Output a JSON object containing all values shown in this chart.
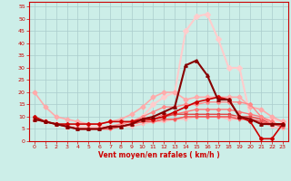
{
  "xlabel": "Vent moyen/en rafales ( km/h )",
  "background_color": "#cceee8",
  "grid_color": "#aacccc",
  "xlim": [
    -0.5,
    23.5
  ],
  "ylim": [
    0,
    57
  ],
  "yticks": [
    0,
    5,
    10,
    15,
    20,
    25,
    30,
    35,
    40,
    45,
    50,
    55
  ],
  "xticks": [
    0,
    1,
    2,
    3,
    4,
    5,
    6,
    7,
    8,
    9,
    10,
    11,
    12,
    13,
    14,
    15,
    16,
    17,
    18,
    19,
    20,
    21,
    22,
    23
  ],
  "lines": [
    {
      "x": [
        0,
        1,
        2,
        3,
        4,
        5,
        6,
        7,
        8,
        9,
        10,
        11,
        12,
        13,
        14,
        15,
        16,
        17,
        18,
        19,
        20,
        21,
        22,
        23
      ],
      "y": [
        10,
        8,
        7,
        7,
        7,
        7,
        7,
        8,
        8,
        8,
        9,
        9,
        10,
        12,
        14,
        16,
        17,
        18,
        17,
        10,
        8,
        1,
        1,
        7
      ],
      "color": "#cc0000",
      "lw": 1.2,
      "marker": "D",
      "ms": 2.0,
      "zorder": 5
    },
    {
      "x": [
        0,
        1,
        2,
        3,
        4,
        5,
        6,
        7,
        8,
        9,
        10,
        11,
        12,
        13,
        14,
        15,
        16,
        17,
        18,
        19,
        20,
        21,
        22,
        23
      ],
      "y": [
        9,
        8,
        7,
        6,
        5,
        5,
        5,
        6,
        6,
        7,
        9,
        10,
        12,
        14,
        31,
        33,
        27,
        17,
        17,
        10,
        9,
        7,
        7,
        7
      ],
      "color": "#880000",
      "lw": 1.5,
      "marker": "^",
      "ms": 2.5,
      "zorder": 6
    },
    {
      "x": [
        0,
        1,
        2,
        3,
        4,
        5,
        6,
        7,
        8,
        9,
        10,
        11,
        12,
        13,
        14,
        15,
        16,
        17,
        18,
        19,
        20,
        21,
        22,
        23
      ],
      "y": [
        20,
        14,
        10,
        9,
        8,
        7,
        7,
        8,
        9,
        11,
        14,
        18,
        20,
        20,
        17,
        18,
        18,
        18,
        18,
        18,
        14,
        13,
        10,
        8
      ],
      "color": "#ffaaaa",
      "lw": 1.2,
      "marker": "D",
      "ms": 2.5,
      "zorder": 3
    },
    {
      "x": [
        0,
        1,
        2,
        3,
        4,
        5,
        6,
        7,
        8,
        9,
        10,
        11,
        12,
        13,
        14,
        15,
        16,
        17,
        18,
        19,
        20,
        21,
        22,
        23
      ],
      "y": [
        9,
        8,
        7,
        6,
        5,
        5,
        5,
        6,
        6,
        7,
        9,
        9,
        11,
        11,
        12,
        13,
        13,
        13,
        13,
        12,
        11,
        10,
        8,
        6
      ],
      "color": "#ff7777",
      "lw": 1.0,
      "marker": "D",
      "ms": 2.0,
      "zorder": 4
    },
    {
      "x": [
        0,
        1,
        2,
        3,
        4,
        5,
        6,
        7,
        8,
        9,
        10,
        11,
        12,
        13,
        14,
        15,
        16,
        17,
        18,
        19,
        20,
        21,
        22,
        23
      ],
      "y": [
        9,
        8,
        7,
        6,
        5,
        5,
        5,
        6,
        6,
        7,
        8,
        9,
        10,
        11,
        11,
        11,
        11,
        11,
        11,
        10,
        10,
        9,
        7,
        6
      ],
      "color": "#dd4444",
      "lw": 1.0,
      "marker": "s",
      "ms": 2.0,
      "zorder": 4
    },
    {
      "x": [
        0,
        1,
        2,
        3,
        4,
        5,
        6,
        7,
        8,
        9,
        10,
        11,
        12,
        13,
        14,
        15,
        16,
        17,
        18,
        19,
        20,
        21,
        22,
        23
      ],
      "y": [
        9,
        8,
        7,
        6,
        5,
        5,
        5,
        5,
        6,
        7,
        8,
        8,
        9,
        9,
        10,
        10,
        10,
        10,
        10,
        10,
        9,
        8,
        7,
        6
      ],
      "color": "#ff9999",
      "lw": 1.0,
      "marker": "D",
      "ms": 2.0,
      "zorder": 4
    },
    {
      "x": [
        0,
        1,
        2,
        3,
        4,
        5,
        6,
        7,
        8,
        9,
        10,
        11,
        12,
        13,
        14,
        15,
        16,
        17,
        18,
        19,
        20,
        21,
        22,
        23
      ],
      "y": [
        9,
        8,
        7,
        6,
        5,
        5,
        5,
        5,
        6,
        7,
        8,
        8,
        9,
        9,
        10,
        10,
        10,
        10,
        10,
        9,
        9,
        8,
        7,
        6
      ],
      "color": "#ee5555",
      "lw": 1.0,
      "marker": "v",
      "ms": 2.0,
      "zorder": 4
    },
    {
      "x": [
        0,
        1,
        2,
        3,
        4,
        5,
        6,
        7,
        8,
        9,
        10,
        11,
        12,
        13,
        14,
        15,
        16,
        17,
        18,
        19,
        20,
        21,
        22,
        23
      ],
      "y": [
        9,
        8,
        7,
        6,
        5,
        5,
        5,
        5,
        6,
        6,
        7,
        8,
        8,
        9,
        9,
        10,
        10,
        10,
        9,
        9,
        9,
        8,
        6,
        5
      ],
      "color": "#ffbbbb",
      "lw": 1.0,
      "marker": "s",
      "ms": 2.0,
      "zorder": 3
    },
    {
      "x": [
        0,
        1,
        2,
        3,
        4,
        5,
        6,
        7,
        8,
        9,
        10,
        11,
        12,
        13,
        14,
        15,
        16,
        17,
        18,
        19,
        20,
        21,
        22,
        23
      ],
      "y": [
        9,
        8,
        7,
        6,
        6,
        6,
        6,
        6,
        7,
        8,
        10,
        15,
        18,
        20,
        45,
        51,
        52,
        42,
        30,
        30,
        10,
        9,
        9,
        8
      ],
      "color": "#ffcccc",
      "lw": 1.5,
      "marker": "D",
      "ms": 3.0,
      "zorder": 2
    },
    {
      "x": [
        0,
        1,
        2,
        3,
        4,
        5,
        6,
        7,
        8,
        9,
        10,
        11,
        12,
        13,
        14,
        15,
        16,
        17,
        18,
        19,
        20,
        21,
        22,
        23
      ],
      "y": [
        9,
        8,
        7,
        6,
        5,
        5,
        5,
        6,
        7,
        8,
        10,
        12,
        14,
        14,
        15,
        15,
        16,
        16,
        16,
        16,
        15,
        10,
        7,
        7
      ],
      "color": "#ff8888",
      "lw": 1.0,
      "marker": "D",
      "ms": 2.0,
      "zorder": 4
    }
  ]
}
